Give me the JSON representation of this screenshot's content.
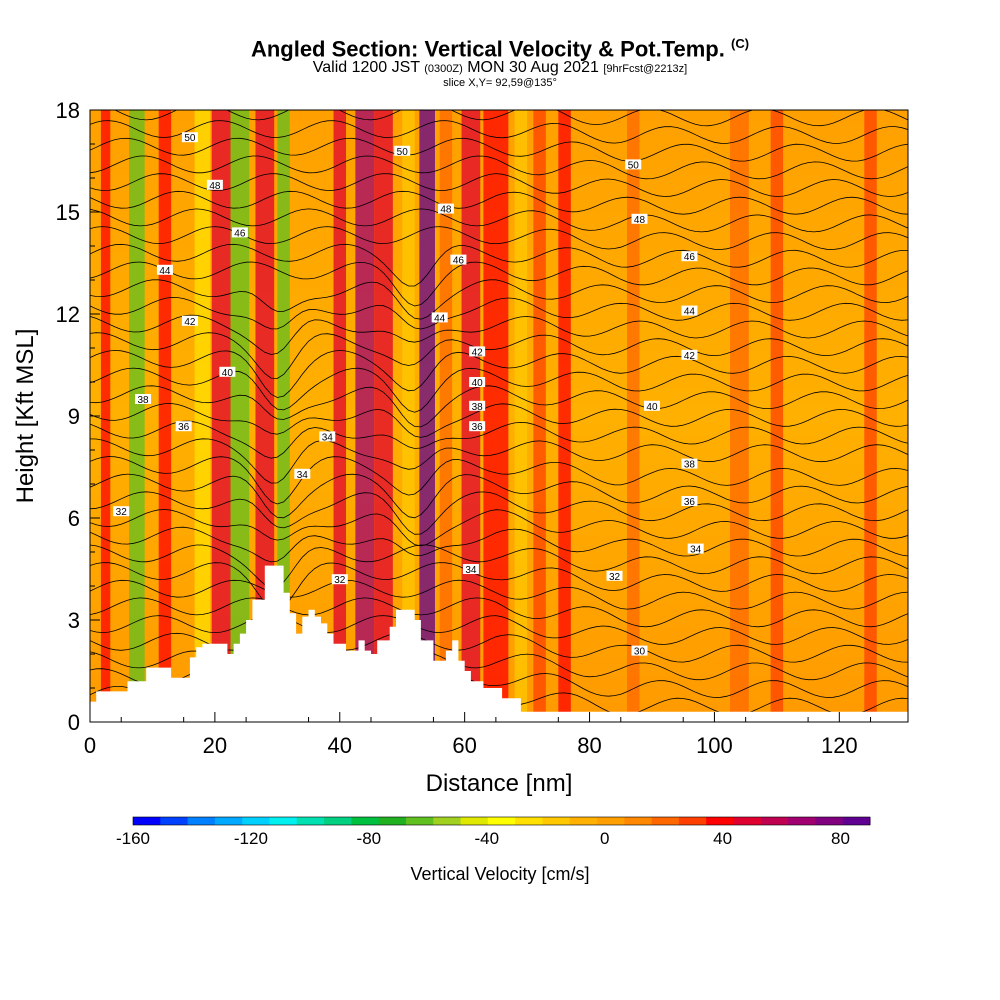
{
  "title": {
    "main": "Angled Section: Vertical Velocity & Pot.Temp.",
    "main_unit": "(C)",
    "line2_a": "Valid 1200 JST",
    "line2_b": "(0300Z)",
    "line2_c": "MON 30 Aug 2021",
    "line2_d": "[9hrFcst@2213z]",
    "line3": "slice X,Y= 92,59@135°"
  },
  "chart_data": {
    "type": "heatmap",
    "xlabel": "Distance [nm]",
    "ylabel": "Height [Kft MSL]",
    "xlim": [
      0,
      131
    ],
    "ylim": [
      0,
      18
    ],
    "xticks": [
      0,
      20,
      40,
      60,
      80,
      100,
      120
    ],
    "yticks": [
      0,
      3,
      6,
      9,
      12,
      15,
      18
    ],
    "colorbar": {
      "label": "Vertical Velocity [cm/s]",
      "ticks": [
        -160,
        -120,
        -80,
        -40,
        0,
        40,
        80
      ],
      "range": [
        -160,
        90
      ],
      "colors": [
        "#0000ff",
        "#0040ff",
        "#0080ff",
        "#00a8ff",
        "#00d0ff",
        "#00f0f0",
        "#00e0b0",
        "#00d080",
        "#00c040",
        "#20b020",
        "#60c020",
        "#a0d020",
        "#e0e800",
        "#ffff00",
        "#ffe000",
        "#ffc800",
        "#ffb000",
        "#ffa000",
        "#ff8800",
        "#ff6800",
        "#ff4000",
        "#ff0000",
        "#e00030",
        "#c00050",
        "#a00070",
        "#800080",
        "#600090"
      ]
    },
    "contours": {
      "variable": "Potential temperature (C)",
      "labels": [
        {
          "x": 5,
          "y": 6.2,
          "text": "32"
        },
        {
          "x": 40,
          "y": 4.2,
          "text": "32"
        },
        {
          "x": 38,
          "y": 8.4,
          "text": "34"
        },
        {
          "x": 61,
          "y": 4.5,
          "text": "34"
        },
        {
          "x": 34,
          "y": 7.3,
          "text": "34"
        },
        {
          "x": 8.5,
          "y": 9.5,
          "text": "38"
        },
        {
          "x": 15,
          "y": 8.7,
          "text": "36"
        },
        {
          "x": 62,
          "y": 8.7,
          "text": "36"
        },
        {
          "x": 62,
          "y": 9.3,
          "text": "38"
        },
        {
          "x": 22,
          "y": 10.3,
          "text": "40"
        },
        {
          "x": 62,
          "y": 10.0,
          "text": "40"
        },
        {
          "x": 62,
          "y": 10.9,
          "text": "42"
        },
        {
          "x": 16,
          "y": 11.8,
          "text": "42"
        },
        {
          "x": 12,
          "y": 13.3,
          "text": "44"
        },
        {
          "x": 56,
          "y": 11.9,
          "text": "44"
        },
        {
          "x": 24,
          "y": 14.4,
          "text": "46"
        },
        {
          "x": 59,
          "y": 13.6,
          "text": "46"
        },
        {
          "x": 20,
          "y": 15.8,
          "text": "48"
        },
        {
          "x": 57,
          "y": 15.1,
          "text": "48"
        },
        {
          "x": 16,
          "y": 17.2,
          "text": "50"
        },
        {
          "x": 50,
          "y": 16.8,
          "text": "50"
        },
        {
          "x": 87,
          "y": 16.4,
          "text": "50"
        },
        {
          "x": 88,
          "y": 14.8,
          "text": "48"
        },
        {
          "x": 96,
          "y": 13.7,
          "text": "46"
        },
        {
          "x": 96,
          "y": 12.1,
          "text": "44"
        },
        {
          "x": 96,
          "y": 10.8,
          "text": "42"
        },
        {
          "x": 90,
          "y": 9.3,
          "text": "40"
        },
        {
          "x": 96,
          "y": 7.6,
          "text": "38"
        },
        {
          "x": 96,
          "y": 6.5,
          "text": "36"
        },
        {
          "x": 97,
          "y": 5.1,
          "text": "34"
        },
        {
          "x": 84,
          "y": 4.3,
          "text": "32"
        },
        {
          "x": 88,
          "y": 2.1,
          "text": "30"
        }
      ]
    },
    "terrain": [
      [
        0,
        0.6
      ],
      [
        1,
        0.6
      ],
      [
        1,
        0.9
      ],
      [
        6,
        0.9
      ],
      [
        6,
        1.2
      ],
      [
        9,
        1.2
      ],
      [
        9,
        1.6
      ],
      [
        13,
        1.6
      ],
      [
        13,
        1.3
      ],
      [
        16,
        1.3
      ],
      [
        16,
        1.9
      ],
      [
        17,
        1.9
      ],
      [
        17,
        2.2
      ],
      [
        18,
        2.2
      ],
      [
        18,
        2.3
      ],
      [
        22,
        2.3
      ],
      [
        22,
        2.0
      ],
      [
        23,
        2.0
      ],
      [
        23,
        2.3
      ],
      [
        24,
        2.3
      ],
      [
        24,
        2.6
      ],
      [
        25,
        2.6
      ],
      [
        25,
        3.0
      ],
      [
        26,
        3.0
      ],
      [
        26,
        3.6
      ],
      [
        28,
        3.6
      ],
      [
        28,
        4.6
      ],
      [
        31,
        4.6
      ],
      [
        31,
        3.8
      ],
      [
        32,
        3.8
      ],
      [
        32,
        3.2
      ],
      [
        33,
        3.2
      ],
      [
        33,
        2.6
      ],
      [
        34,
        2.6
      ],
      [
        34,
        3.1
      ],
      [
        35,
        3.1
      ],
      [
        35,
        3.3
      ],
      [
        36,
        3.3
      ],
      [
        36,
        3.1
      ],
      [
        37,
        3.1
      ],
      [
        37,
        2.9
      ],
      [
        38,
        2.9
      ],
      [
        38,
        2.6
      ],
      [
        39,
        2.6
      ],
      [
        39,
        2.3
      ],
      [
        41,
        2.3
      ],
      [
        41,
        2.1
      ],
      [
        43,
        2.1
      ],
      [
        43,
        2.4
      ],
      [
        44,
        2.4
      ],
      [
        44,
        2.1
      ],
      [
        45,
        2.1
      ],
      [
        45,
        2.0
      ],
      [
        46,
        2.0
      ],
      [
        46,
        2.4
      ],
      [
        48,
        2.4
      ],
      [
        48,
        2.8
      ],
      [
        49,
        2.8
      ],
      [
        49,
        3.3
      ],
      [
        52,
        3.3
      ],
      [
        52,
        3.0
      ],
      [
        53,
        3.0
      ],
      [
        53,
        2.4
      ],
      [
        55,
        2.4
      ],
      [
        55,
        1.8
      ],
      [
        57,
        1.8
      ],
      [
        57,
        2.1
      ],
      [
        58,
        2.1
      ],
      [
        58,
        2.4
      ],
      [
        59,
        2.4
      ],
      [
        59,
        1.8
      ],
      [
        60,
        1.8
      ],
      [
        60,
        1.5
      ],
      [
        61,
        1.5
      ],
      [
        61,
        1.2
      ],
      [
        63,
        1.2
      ],
      [
        63,
        1.0
      ],
      [
        66,
        1.0
      ],
      [
        66,
        0.7
      ],
      [
        69,
        0.7
      ],
      [
        69,
        0.3
      ],
      [
        72,
        0.3
      ],
      [
        72,
        0.3
      ],
      [
        131,
        0.3
      ]
    ],
    "series_bands": [
      {
        "x": 2.5,
        "w": 1.5,
        "value": 40
      },
      {
        "x": 7.5,
        "w": 2.5,
        "value": -60
      },
      {
        "x": 12,
        "w": 2,
        "value": 40
      },
      {
        "x": 18,
        "w": 2.5,
        "value": -30
      },
      {
        "x": 21,
        "w": 3,
        "value": 50
      },
      {
        "x": 24,
        "w": 3,
        "value": -60
      },
      {
        "x": 28,
        "w": 3,
        "value": 50
      },
      {
        "x": 31,
        "w": 2,
        "value": -60
      },
      {
        "x": 40,
        "w": 2,
        "value": 50
      },
      {
        "x": 44,
        "w": 3,
        "value": 70
      },
      {
        "x": 47,
        "w": 3,
        "value": 50
      },
      {
        "x": 51,
        "w": 2,
        "value": -20
      },
      {
        "x": 54,
        "w": 2.5,
        "value": 90
      },
      {
        "x": 57,
        "w": 2,
        "value": 20
      },
      {
        "x": 61,
        "w": 3,
        "value": 50
      },
      {
        "x": 65,
        "w": 4,
        "value": 40
      },
      {
        "x": 69,
        "w": 2,
        "value": -20
      },
      {
        "x": 72,
        "w": 2,
        "value": 30
      },
      {
        "x": 76,
        "w": 2,
        "value": 40
      },
      {
        "x": 87,
        "w": 2,
        "value": 20
      },
      {
        "x": 104,
        "w": 3,
        "value": 20
      },
      {
        "x": 110,
        "w": 2,
        "value": 30
      },
      {
        "x": 125,
        "w": 2,
        "value": 30
      }
    ]
  }
}
